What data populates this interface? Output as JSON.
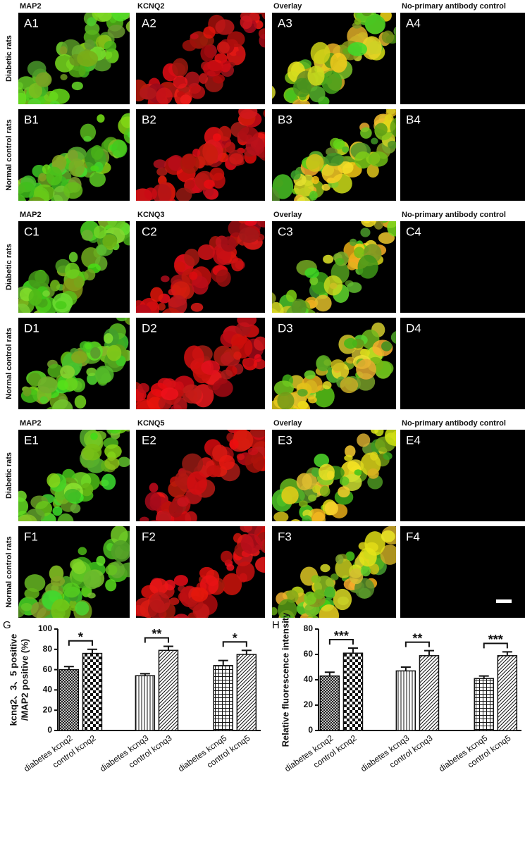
{
  "figure": {
    "groups": [
      {
        "headers": [
          "MAP2",
          "KCNQ2",
          "Overlay",
          "No-primary antibody control"
        ],
        "rows": [
          {
            "label": "Diabetic rats",
            "panels": [
              "A1",
              "A2",
              "A3",
              "A4"
            ]
          },
          {
            "label": "Normal control rats",
            "panels": [
              "B1",
              "B2",
              "B3",
              "B4"
            ]
          }
        ]
      },
      {
        "headers": [
          "MAP2",
          "KCNQ3",
          "Overlay",
          "No-primary antibody control"
        ],
        "rows": [
          {
            "label": "Diabetic rats",
            "panels": [
              "C1",
              "C2",
              "C3",
              "C4"
            ]
          },
          {
            "label": "Normal control rats",
            "panels": [
              "D1",
              "D2",
              "D3",
              "D4"
            ]
          }
        ]
      },
      {
        "headers": [
          "MAP2",
          "KCNQ5",
          "Overlay",
          "No-primary antibody control"
        ],
        "rows": [
          {
            "label": "Diabetic rats",
            "panels": [
              "E1",
              "E2",
              "E3",
              "E4"
            ]
          },
          {
            "label": "Normal control rats",
            "panels": [
              "F1",
              "F2",
              "F3",
              "F4"
            ]
          }
        ]
      }
    ]
  },
  "chart_data": [
    {
      "type": "bar",
      "panel": "G",
      "ylabel": [
        "kcnq2、3、5 positive",
        "/MAP2 positive (%)"
      ],
      "categories": [
        "diabetes kcnq2",
        "control kcnq2",
        "diabetes kcnq3",
        "control kcnq3",
        "diabetes kcnq5",
        "control kcnq5"
      ],
      "values": [
        60,
        76,
        54,
        79,
        64,
        75
      ],
      "errors": [
        3,
        4,
        2,
        4,
        5,
        4
      ],
      "patterns": [
        "crosshatch",
        "checker",
        "vertical",
        "diagonal",
        "grid",
        "diagonal"
      ],
      "ylim": [
        0,
        100
      ],
      "yticks": [
        0,
        20,
        40,
        60,
        80,
        100
      ],
      "annotations": [
        {
          "text": "*",
          "between": [
            0,
            1
          ]
        },
        {
          "text": "**",
          "between": [
            2,
            3
          ]
        },
        {
          "text": "*",
          "between": [
            4,
            5
          ]
        }
      ]
    },
    {
      "type": "bar",
      "panel": "H",
      "ylabel": [
        "Relative  fluorescence intensity"
      ],
      "categories": [
        "diabetes kcnq2",
        "control kcnq2",
        "diabetes kcnq3",
        "control kcnq3",
        "diabetes kcnq5",
        "control kcnq5"
      ],
      "values": [
        43,
        61,
        47,
        59,
        41,
        59
      ],
      "errors": [
        3,
        4,
        3,
        4,
        2,
        3
      ],
      "patterns": [
        "crosshatch",
        "checker",
        "vertical",
        "diagonal",
        "grid",
        "diagonal"
      ],
      "ylim": [
        0,
        80
      ],
      "yticks": [
        0,
        20,
        40,
        60,
        80
      ],
      "annotations": [
        {
          "text": "***",
          "between": [
            0,
            1
          ]
        },
        {
          "text": "**",
          "between": [
            2,
            3
          ]
        },
        {
          "text": "***",
          "between": [
            4,
            5
          ]
        }
      ]
    }
  ]
}
